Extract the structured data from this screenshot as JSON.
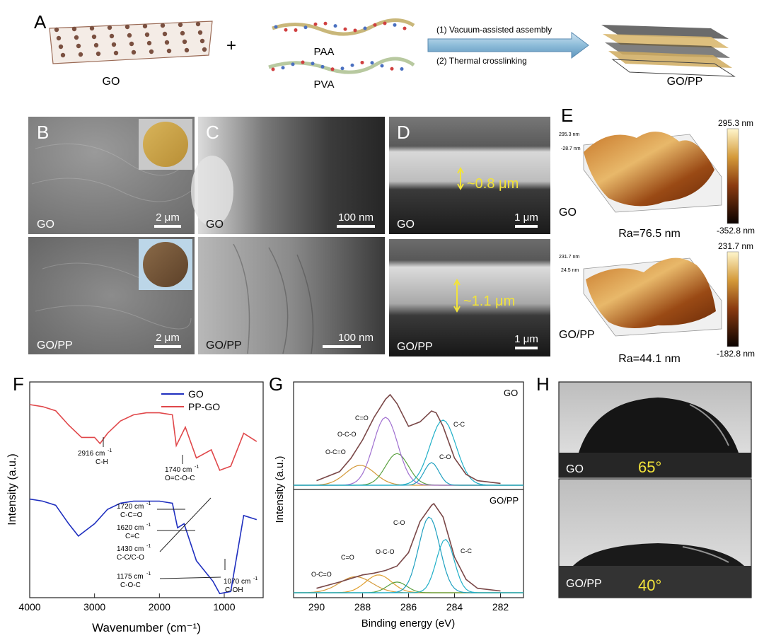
{
  "panel_a": {
    "letter": "A",
    "go_label": "GO",
    "plus": "+",
    "paa_label": "PAA",
    "pva_label": "PVA",
    "step1": "(1) Vacuum-assisted assembly",
    "step2": "(2) Thermal crosslinking",
    "product_label": "GO/PP"
  },
  "panel_b": {
    "letter": "B",
    "top_label": "GO",
    "bottom_label": "GO/PP",
    "scale_top": "2 μm",
    "scale_bottom": "2 μm"
  },
  "panel_c": {
    "letter": "C",
    "top_label": "GO",
    "bottom_label": "GO/PP",
    "scale_top": "100 nm",
    "scale_bottom": "100 nm"
  },
  "panel_d": {
    "letter": "D",
    "top_label": "GO",
    "bottom_label": "GO/PP",
    "thickness_top": "~0.8 μm",
    "thickness_bottom": "~1.1 μm",
    "scale_top": "1 μm",
    "scale_bottom": "1 μm"
  },
  "panel_e": {
    "letter": "E",
    "top": {
      "label": "GO",
      "ra": "Ra=76.5 nm",
      "cbar_max": "295.3 nm",
      "cbar_min": "-352.8 nm",
      "axis_top": "295.3 nm",
      "axis_bottom": "-28.7 nm"
    },
    "bottom": {
      "label": "GO/PP",
      "ra": "Ra=44.1 nm",
      "cbar_max": "231.7 nm",
      "cbar_min": "-182.8 nm",
      "axis_top": "231.7 nm",
      "axis_bottom": "24.5 nm"
    }
  },
  "panel_f": {
    "letter": "F",
    "legend_go": "GO",
    "legend_ppgo": "PP-GO",
    "ylabel": "Intensity (a.u.)",
    "xlabel": "Wavenumber (cm⁻¹)",
    "xticks": [
      "4000",
      "3000",
      "2000",
      "1000"
    ],
    "ann_2916_a": "2916 cm",
    "ann_2916_b": "C-H",
    "ann_1740_a": "1740 cm",
    "ann_1740_b": "O=C-O-C",
    "ann_1720_a": "1720 cm",
    "ann_1720_b": "C-C=O",
    "ann_1620_a": "1620 cm",
    "ann_1620_b": "C=C",
    "ann_1430_a": "1430 cm",
    "ann_1430_b": "C-C/C-O",
    "ann_1175_a": "1175 cm",
    "ann_1175_b": "C-O-C",
    "ann_1070_a": "1070 cm",
    "ann_1070_b": "C-OH",
    "sup": "-1"
  },
  "panel_g": {
    "letter": "G",
    "top_title": "GO",
    "bottom_title": "GO/PP",
    "ylabel": "Intensity (a.u.)",
    "xlabel": "Binding energy (eV)",
    "xticks": [
      "290",
      "288",
      "286",
      "284",
      "282"
    ],
    "peak_oco": "O-C=O",
    "peak_oc": "O-C-O",
    "peak_ceo": "C=O",
    "peak_co": "C-O",
    "peak_cc": "C-C"
  },
  "panel_h": {
    "letter": "H",
    "top_label": "GO",
    "top_angle": "65°",
    "bottom_label": "GO/PP",
    "bottom_angle": "40°"
  },
  "colors": {
    "go_line": "#1f2fbf",
    "ppgo_line": "#e0474a",
    "afm_dark": "#4a1a05",
    "afm_light": "#f0d890",
    "accent_yellow": "#f2e33a"
  },
  "chart_data": [
    {
      "type": "line",
      "series": [
        {
          "name": "GO",
          "x": [
            4000,
            3800,
            3600,
            3400,
            3250,
            3000,
            2800,
            2600,
            2400,
            2200,
            2000,
            1800,
            1720,
            1620,
            1430,
            1175,
            1070,
            900,
            700,
            500
          ],
          "values": [
            4.8,
            4.7,
            4.5,
            3.6,
            3.0,
            3.6,
            4.3,
            4.6,
            4.7,
            4.7,
            4.7,
            4.6,
            3.4,
            3.6,
            1.8,
            0.8,
            0.2,
            0.3,
            4.0,
            3.8
          ]
        },
        {
          "name": "PP-GO",
          "x": [
            4000,
            3800,
            3600,
            3400,
            3200,
            3000,
            2916,
            2800,
            2600,
            2400,
            2200,
            2000,
            1800,
            1740,
            1600,
            1430,
            1200,
            1070,
            900,
            700,
            500
          ],
          "values": [
            9.4,
            9.3,
            9.1,
            8.4,
            7.8,
            7.8,
            7.5,
            8.0,
            8.6,
            8.9,
            9.0,
            9.0,
            8.9,
            7.4,
            8.3,
            6.8,
            7.2,
            6.2,
            6.4,
            8.0,
            7.6
          ]
        }
      ],
      "xlabel": "Wavenumber (cm⁻¹)",
      "ylabel": "Intensity (a.u.)",
      "xlim": [
        4000,
        400
      ]
    },
    {
      "type": "line",
      "series": [
        {
          "name": "GO",
          "x": [
            290,
            289,
            288.5,
            288,
            287.5,
            287,
            286.8,
            286.5,
            286,
            285.5,
            285,
            284.8,
            284.5,
            284,
            283.5,
            283,
            282
          ],
          "values": [
            0.05,
            0.15,
            0.3,
            0.5,
            0.75,
            0.95,
            1.0,
            0.9,
            0.65,
            0.7,
            0.82,
            0.8,
            0.65,
            0.3,
            0.12,
            0.05,
            0.02
          ]
        },
        {
          "name": "GO/PP",
          "x": [
            290,
            289,
            288,
            287.5,
            287,
            286.5,
            286,
            285.5,
            285,
            284.9,
            284.5,
            284,
            283.5,
            283,
            282
          ],
          "values": [
            0.05,
            0.12,
            0.2,
            0.22,
            0.25,
            0.3,
            0.45,
            0.8,
            0.98,
            1.0,
            0.85,
            0.4,
            0.15,
            0.05,
            0.02
          ]
        }
      ],
      "xlabel": "Binding energy (eV)",
      "ylabel": "Intensity (a.u.)",
      "xlim": [
        291,
        281
      ],
      "xticks": [
        290,
        288,
        286,
        284,
        282
      ]
    }
  ]
}
